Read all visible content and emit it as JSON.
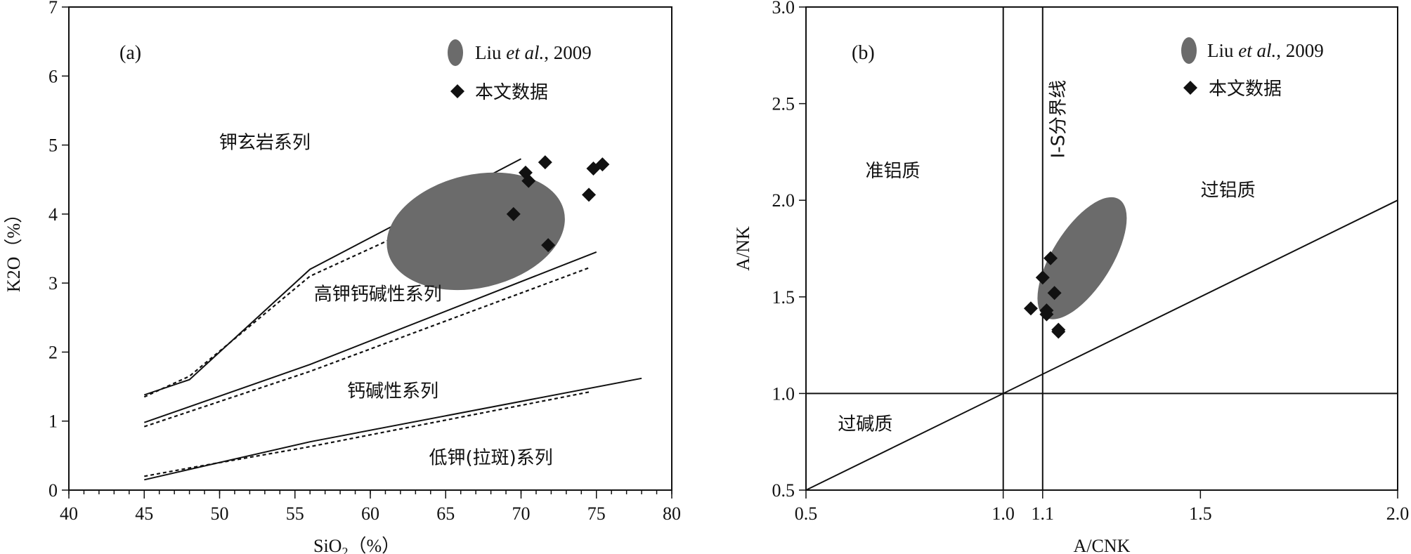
{
  "colors": {
    "ellipse": "#6b6b6b",
    "marker": "#111111",
    "line": "#111111"
  },
  "chart_data": [
    {
      "type": "scatter",
      "panel_label": "(a)",
      "xlabel": "SiO₂（%）",
      "ylabel": "K2O（%）",
      "xlim": [
        40,
        80
      ],
      "ylim": [
        0,
        7
      ],
      "x_ticks": [
        "40",
        "45",
        "50",
        "55",
        "60",
        "65",
        "70",
        "75",
        "80"
      ],
      "y_ticks": [
        "0",
        "1",
        "2",
        "3",
        "4",
        "5",
        "6",
        "7"
      ],
      "legend": [
        {
          "name": "Liu",
          "name_italic": "et al.",
          "name_suffix": ", 2009",
          "marker": "ellipse"
        },
        {
          "name": "本文数据",
          "marker": "diamond"
        }
      ],
      "series": [
        {
          "name": "本文数据",
          "x": [
            69.5,
            70.3,
            70.5,
            71.6,
            71.8,
            74.5,
            74.8,
            75.4
          ],
          "y": [
            4.0,
            4.6,
            4.48,
            4.75,
            3.55,
            4.28,
            4.66,
            4.72
          ]
        }
      ],
      "regions": [
        {
          "name": "Liu et al., 2009",
          "center": [
            67.0,
            3.75
          ],
          "radius": [
            6.0,
            0.82
          ],
          "rotation_deg": -13
        }
      ],
      "boundaries": [
        {
          "style": "solid",
          "x": [
            45,
            48,
            56,
            70
          ],
          "y": [
            1.38,
            1.6,
            3.2,
            4.8
          ]
        },
        {
          "style": "dotted",
          "x": [
            45,
            48,
            56,
            69.5
          ],
          "y": [
            1.35,
            1.65,
            3.1,
            4.45
          ]
        },
        {
          "style": "solid",
          "x": [
            45,
            56,
            75
          ],
          "y": [
            0.98,
            1.82,
            3.45
          ]
        },
        {
          "style": "dotted",
          "x": [
            45,
            56,
            74.5
          ],
          "y": [
            0.92,
            1.72,
            3.22
          ]
        },
        {
          "style": "solid",
          "x": [
            45,
            48,
            56,
            78
          ],
          "y": [
            0.15,
            0.3,
            0.7,
            1.62
          ]
        },
        {
          "style": "dotted",
          "x": [
            45,
            48,
            56,
            74.5
          ],
          "y": [
            0.2,
            0.32,
            0.63,
            1.42
          ]
        }
      ],
      "annotations": [
        {
          "text": "钾玄岩系列",
          "x": 53,
          "y": 4.95
        },
        {
          "text": "高钾钙碱性系列",
          "x": 60.5,
          "y": 2.75
        },
        {
          "text": "钙碱性系列",
          "x": 61.5,
          "y": 1.35
        },
        {
          "text": "低钾(拉斑)系列",
          "x": 68,
          "y": 0.38
        }
      ]
    },
    {
      "type": "scatter",
      "panel_label": "(b)",
      "xlabel": "A/CNK",
      "ylabel": "A/NK",
      "xlim": [
        0.5,
        2.0
      ],
      "ylim": [
        0.5,
        3.0
      ],
      "x_ticks": [
        "0.5",
        "1.0",
        "1.1",
        "1.5",
        "2.0"
      ],
      "y_ticks": [
        "0.5",
        "1.0",
        "1.5",
        "2.0",
        "2.5",
        "3.0"
      ],
      "legend": [
        {
          "name": "Liu",
          "name_italic": "et al.",
          "name_suffix": ", 2009",
          "marker": "ellipse"
        },
        {
          "name": "本文数据",
          "marker": "diamond"
        }
      ],
      "series": [
        {
          "name": "本文数据",
          "x": [
            1.07,
            1.1,
            1.12,
            1.13,
            1.11,
            1.11,
            1.14,
            1.14
          ],
          "y": [
            1.44,
            1.6,
            1.7,
            1.52,
            1.43,
            1.41,
            1.33,
            1.32
          ]
        }
      ],
      "regions": [
        {
          "name": "Liu et al., 2009",
          "center": [
            1.2,
            1.7
          ],
          "radius": [
            0.075,
            0.36
          ],
          "rotation_deg": 32
        }
      ],
      "boundaries": [
        {
          "style": "solid",
          "x": [
            1.0,
            1.0
          ],
          "y": [
            0.5,
            3.0
          ]
        },
        {
          "style": "solid",
          "x": [
            1.1,
            1.1
          ],
          "y": [
            0.5,
            3.0
          ]
        },
        {
          "style": "solid",
          "x": [
            0.5,
            2.0
          ],
          "y": [
            1.0,
            1.0
          ]
        },
        {
          "style": "solid",
          "x": [
            0.5,
            2.0
          ],
          "y": [
            0.5,
            2.0
          ]
        }
      ],
      "annotations": [
        {
          "text": "准铝质",
          "x": 0.72,
          "y": 2.12
        },
        {
          "text": "过铝质",
          "x": 1.57,
          "y": 2.02
        },
        {
          "text": "过碱质",
          "x": 0.65,
          "y": 0.81
        },
        {
          "text": "I-S分界线",
          "x": 1.155,
          "y": 2.42,
          "vertical": true
        }
      ]
    }
  ]
}
